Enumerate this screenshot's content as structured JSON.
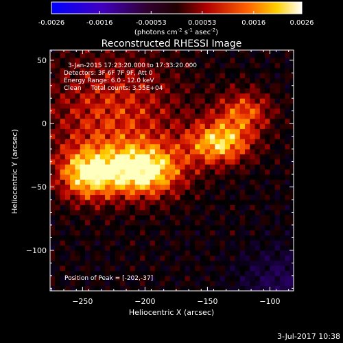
{
  "colorbar": {
    "tick_labels": [
      "-0.0026",
      "-0.0016",
      "-0.00053",
      "0.00053",
      "0.0016",
      "0.0026"
    ],
    "tick_values": [
      -0.0026,
      -0.0016,
      -0.00053,
      0.00053,
      0.0016,
      0.0026
    ],
    "range": [
      -0.0026,
      0.0026
    ],
    "units_prefix": "(photons cm",
    "units_exp1": "-2",
    "units_mid": " s",
    "units_exp2": "-1",
    "units_mid2": " asec",
    "units_exp3": "-2",
    "units_suffix": ")",
    "colors": [
      "#0000ff",
      "#5a0080",
      "#000000",
      "#a00000",
      "#ff5000",
      "#ffd000",
      "#ffffff"
    ]
  },
  "chart_data": {
    "type": "heatmap",
    "title": "Reconstructed RHESSI Image",
    "xlabel": "Heliocentric X (arcsec)",
    "ylabel": "Heliocentric Y (arcsec)",
    "xlim": [
      -276,
      -81
    ],
    "ylim": [
      -132,
      58
    ],
    "x_ticks": [
      -250,
      -200,
      -150,
      -100
    ],
    "y_ticks": [
      50,
      0,
      -50,
      -100
    ],
    "x_tick_labels": [
      "−250",
      "−200",
      "−150",
      "−100"
    ],
    "y_tick_labels": [
      "50",
      "0",
      "−50",
      "−100"
    ],
    "peak": {
      "x": -202,
      "y": -37
    },
    "sources": [
      {
        "x": -202,
        "y": -37,
        "sx": 22,
        "sy": 14,
        "amp": 1.0
      },
      {
        "x": -247,
        "y": -40,
        "sx": 16,
        "sy": 14,
        "amp": 0.8
      },
      {
        "x": -140,
        "y": -15,
        "sx": 18,
        "sy": 12,
        "amp": 0.85
      },
      {
        "x": -120,
        "y": 10,
        "sx": 16,
        "sy": 12,
        "amp": 0.55
      },
      {
        "x": -225,
        "y": 5,
        "sx": 40,
        "sy": 35,
        "amp": 0.5
      }
    ],
    "annotations": {
      "time": "3-Jan-2015 17:23:20.000 to 17:33:20.000",
      "detectors": "Detectors: 3F 6F 7F 9F, Att 0",
      "energy": "Energy Range: 6.0 - 12.0 keV",
      "clean": "Clean     Total counts: 3.55E+04",
      "peak_text": "Position of Peak = [-202,-37]"
    }
  },
  "footer": {
    "timestamp": "3-Jul-2017 10:38"
  }
}
